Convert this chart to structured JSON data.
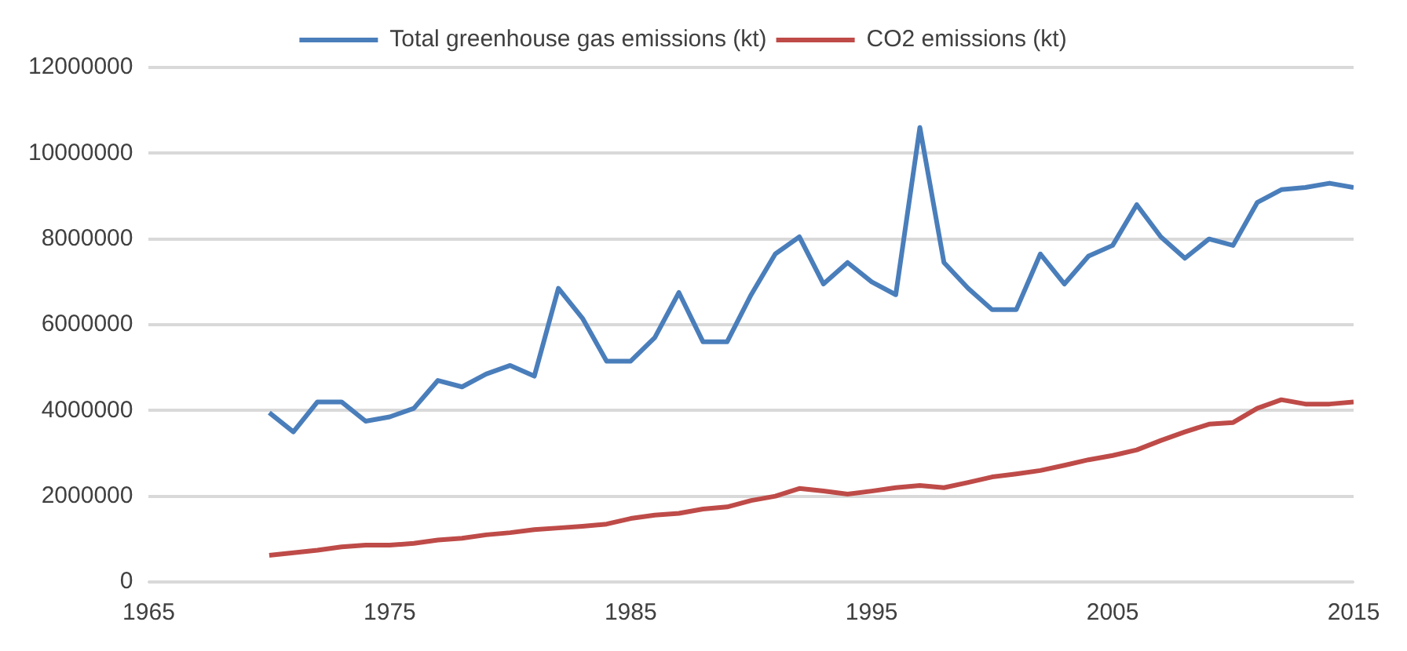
{
  "chart_data": {
    "type": "line",
    "x": [
      1970,
      1971,
      1972,
      1973,
      1974,
      1975,
      1976,
      1977,
      1978,
      1979,
      1980,
      1981,
      1982,
      1983,
      1984,
      1985,
      1986,
      1987,
      1988,
      1989,
      1990,
      1991,
      1992,
      1993,
      1994,
      1995,
      1996,
      1997,
      1998,
      1999,
      2000,
      2001,
      2002,
      2003,
      2004,
      2005,
      2006,
      2007,
      2008,
      2009,
      2010,
      2011,
      2012,
      2013,
      2014,
      2015
    ],
    "series": [
      {
        "name": "Total greenhouse gas emissions (kt)",
        "color": "#4a7ebb",
        "values": [
          3950000,
          3500000,
          4200000,
          4200000,
          3750000,
          3850000,
          4050000,
          4700000,
          4550000,
          4850000,
          5050000,
          4800000,
          6850000,
          6150000,
          5150000,
          5150000,
          5700000,
          6750000,
          5600000,
          5600000,
          6700000,
          7650000,
          8050000,
          6950000,
          7450000,
          7000000,
          6700000,
          10600000,
          7450000,
          6850000,
          6350000,
          6350000,
          7650000,
          6950000,
          7600000,
          7850000,
          8800000,
          8050000,
          7550000,
          8000000,
          7850000,
          8850000,
          9150000,
          9200000,
          9300000,
          9200000
        ]
      },
      {
        "name": "CO2 emissions (kt)",
        "color": "#be4b48",
        "values": [
          620000,
          680000,
          740000,
          820000,
          860000,
          860000,
          900000,
          980000,
          1020000,
          1100000,
          1150000,
          1220000,
          1260000,
          1300000,
          1350000,
          1480000,
          1560000,
          1600000,
          1700000,
          1750000,
          1900000,
          2000000,
          2180000,
          2120000,
          2050000,
          2120000,
          2200000,
          2250000,
          2200000,
          2320000,
          2450000,
          2520000,
          2600000,
          2720000,
          2850000,
          2950000,
          3080000,
          3300000,
          3500000,
          3680000,
          3720000,
          4050000,
          4250000,
          4150000,
          4150000,
          4200000
        ]
      }
    ],
    "xlim": [
      1965,
      2015
    ],
    "xticks": [
      1965,
      1975,
      1985,
      1995,
      2005,
      2015
    ],
    "ylim": [
      0,
      12000000
    ],
    "yticks": [
      0,
      2000000,
      4000000,
      6000000,
      8000000,
      10000000,
      12000000
    ],
    "grid": "y",
    "legend": "top",
    "marker": "none",
    "line_style": "solid"
  }
}
